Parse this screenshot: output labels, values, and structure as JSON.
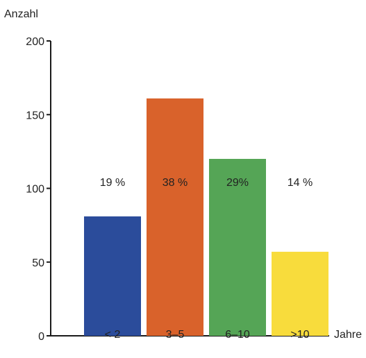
{
  "chart_data": {
    "type": "bar",
    "ylabel": "Anzahl",
    "xlabel": "Jahre",
    "categories": [
      "< 2",
      "3–5",
      "6–10",
      ">10"
    ],
    "values": [
      81,
      161,
      120,
      57
    ],
    "percent_labels": [
      "19 %",
      "38 %",
      "29%",
      "14 %"
    ],
    "colors": [
      "#2b4c9b",
      "#d9622b",
      "#55a556",
      "#f8dc3c"
    ],
    "ylim": [
      0,
      200
    ],
    "yticks": [
      0,
      50,
      100,
      150,
      200
    ],
    "grid": false,
    "legend": "none"
  }
}
